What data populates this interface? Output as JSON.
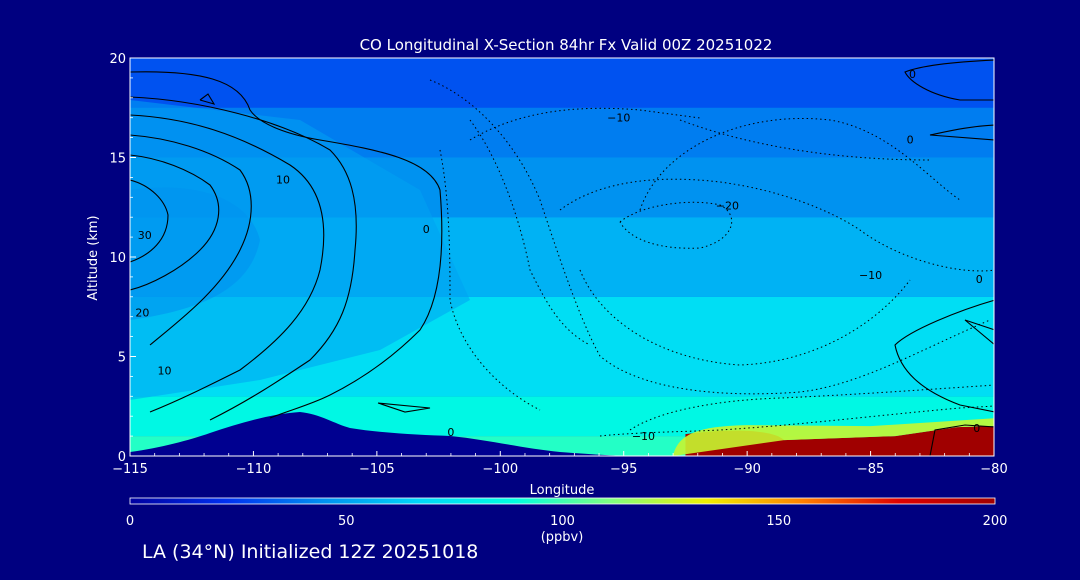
{
  "chart_data": {
    "type": "heatmap",
    "title": "CO Longitudinal X-Section 84hr  Fx Valid 00Z 20251022",
    "xlabel": "Longitude",
    "ylabel": "Altitude (km)",
    "xlim": [
      -115,
      -80
    ],
    "ylim": [
      0,
      20
    ],
    "x_ticks": [
      -115,
      -110,
      -105,
      -100,
      -95,
      -90,
      -85,
      -80
    ],
    "x_tick_labels": [
      "−115",
      "−110",
      "−105",
      "−100",
      "−95",
      "−90",
      "−85",
      "−80"
    ],
    "y_ticks": [
      0,
      5,
      10,
      15,
      20
    ],
    "y_tick_labels": [
      "0",
      "5",
      "10",
      "15",
      "20"
    ],
    "colorbar": {
      "label": "(ppbv)",
      "min": 0,
      "max": 200,
      "ticks": [
        0,
        50,
        100,
        150,
        200
      ],
      "tick_labels": [
        "0",
        "50",
        "100",
        "150",
        "200"
      ],
      "colors": [
        "#0000a0",
        "#0030f0",
        "#0090f0",
        "#00d8f8",
        "#00ffe0",
        "#80ff80",
        "#f0f000",
        "#ff8000",
        "#e00000",
        "#a00000"
      ]
    },
    "fill_bands_ppbv": [
      {
        "altitude_km": [
          17.5,
          20
        ],
        "co": 30
      },
      {
        "altitude_km": [
          15,
          17.5
        ],
        "co": 40
      },
      {
        "altitude_km": [
          12,
          15
        ],
        "co": 45
      },
      {
        "altitude_km": [
          8,
          12
        ],
        "co": 55
      },
      {
        "altitude_km": [
          3,
          8
        ],
        "co": 70
      },
      {
        "altitude_km": [
          1,
          3
        ],
        "co": 85
      },
      {
        "altitude_km": [
          0,
          1
        ],
        "co": 95
      }
    ],
    "high_co_surface_plume": {
      "longitude_range": [
        -92.5,
        -80
      ],
      "altitude_km": [
        0,
        1.2
      ],
      "co": 200
    },
    "contour_labels": [
      {
        "text": "10",
        "lon": -108.8,
        "alt": 13.9
      },
      {
        "text": "0",
        "lon": -103,
        "alt": 11.4
      },
      {
        "text": "30",
        "lon": -114.4,
        "alt": 11.1
      },
      {
        "text": "20",
        "lon": -114.5,
        "alt": 7.2
      },
      {
        "text": "10",
        "lon": -113.6,
        "alt": 4.3
      },
      {
        "text": "0",
        "lon": -102,
        "alt": 1.2
      },
      {
        "text": "−10",
        "lon": -95.2,
        "alt": 17.0
      },
      {
        "text": "−20",
        "lon": -90.8,
        "alt": 12.6
      },
      {
        "text": "−10",
        "lon": -85,
        "alt": 9.1
      },
      {
        "text": "0",
        "lon": -80.6,
        "alt": 8.9
      },
      {
        "text": "0",
        "lon": -83.4,
        "alt": 15.9
      },
      {
        "text": "0",
        "lon": -83.3,
        "alt": 19.2
      },
      {
        "text": "−10",
        "lon": -94.2,
        "alt": 1.0
      },
      {
        "text": "0",
        "lon": -80.7,
        "alt": 1.4
      }
    ]
  },
  "caption": "LA (34°N) Initialized 12Z 20251018",
  "colors": {
    "background": "#000080",
    "terrain": "#000090",
    "text": "#ffffff",
    "contour": "#000000"
  }
}
